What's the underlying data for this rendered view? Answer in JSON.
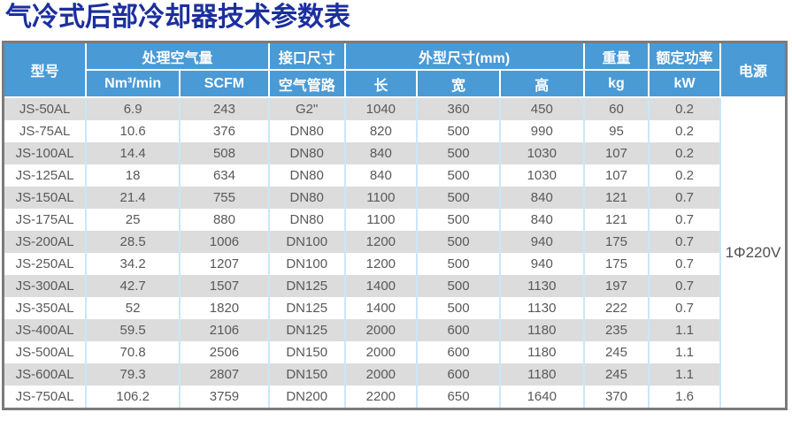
{
  "title": "气冷式后部冷却器技术参数表",
  "colors": {
    "title_text": "#1c2f9e",
    "header_bg": "#4a9ad6",
    "stripe_gray": "#dcdcdc",
    "grid_blue": "#c9e7f8",
    "frame_gray": "#7b7b7b",
    "body_text": "#595959"
  },
  "table": {
    "header": {
      "model": "型号",
      "air_flow": "处理空气量",
      "nm3min": "Nm³/min",
      "scfm": "SCFM",
      "connection": "接口尺寸",
      "air_pipe": "空气管路",
      "dimensions": "外型尺寸(mm)",
      "length": "长",
      "width": "宽",
      "height": "高",
      "weight": "重量",
      "weight_unit": "kg",
      "power_rating": "额定功率",
      "power_unit": "kW",
      "power_supply": "电源"
    },
    "power_supply_value": "1Φ220V",
    "rows": [
      [
        "JS-50AL",
        "6.9",
        "243",
        "G2\"",
        "1040",
        "360",
        "450",
        "60",
        "0.2"
      ],
      [
        "JS-75AL",
        "10.6",
        "376",
        "DN80",
        "820",
        "500",
        "990",
        "95",
        "0.2"
      ],
      [
        "JS-100AL",
        "14.4",
        "508",
        "DN80",
        "840",
        "500",
        "1030",
        "107",
        "0.2"
      ],
      [
        "JS-125AL",
        "18",
        "634",
        "DN80",
        "840",
        "500",
        "1030",
        "107",
        "0.2"
      ],
      [
        "JS-150AL",
        "21.4",
        "755",
        "DN80",
        "1100",
        "500",
        "840",
        "121",
        "0.7"
      ],
      [
        "JS-175AL",
        "25",
        "880",
        "DN80",
        "1100",
        "500",
        "840",
        "121",
        "0.7"
      ],
      [
        "JS-200AL",
        "28.5",
        "1006",
        "DN100",
        "1200",
        "500",
        "940",
        "175",
        "0.7"
      ],
      [
        "JS-250AL",
        "34.2",
        "1207",
        "DN100",
        "1200",
        "500",
        "940",
        "175",
        "0.7"
      ],
      [
        "JS-300AL",
        "42.7",
        "1507",
        "DN125",
        "1400",
        "500",
        "1130",
        "197",
        "0.7"
      ],
      [
        "JS-350AL",
        "52",
        "1820",
        "DN125",
        "1400",
        "500",
        "1130",
        "222",
        "0.7"
      ],
      [
        "JS-400AL",
        "59.5",
        "2106",
        "DN125",
        "2000",
        "600",
        "1180",
        "235",
        "1.1"
      ],
      [
        "JS-500AL",
        "70.8",
        "2506",
        "DN150",
        "2000",
        "600",
        "1180",
        "245",
        "1.1"
      ],
      [
        "JS-600AL",
        "79.3",
        "2807",
        "DN150",
        "2000",
        "600",
        "1180",
        "245",
        "1.1"
      ],
      [
        "JS-750AL",
        "106.2",
        "3759",
        "DN200",
        "2200",
        "650",
        "1640",
        "370",
        "1.6"
      ]
    ]
  }
}
